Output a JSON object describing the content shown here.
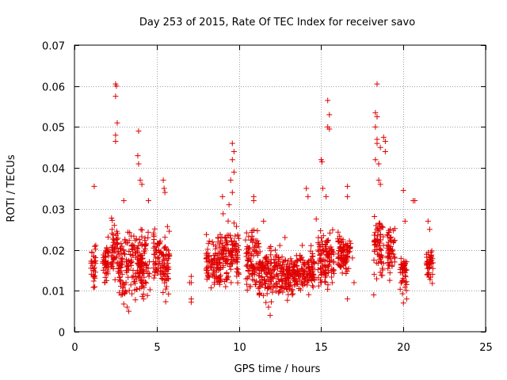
{
  "chart_data": {
    "type": "scatter",
    "title": "Day 253 of 2015, Rate Of TEC Index for receiver savo",
    "xlabel": "GPS time / hours",
    "ylabel": "ROTI / TECUs",
    "xlim": [
      0,
      25
    ],
    "ylim": [
      0,
      0.07
    ],
    "x_ticks": [
      0,
      5,
      10,
      15,
      20,
      25
    ],
    "y_ticks": [
      0,
      0.01,
      0.02,
      0.03,
      0.04,
      0.05,
      0.06,
      0.07
    ],
    "x_tick_labels": [
      "0",
      "5",
      "10",
      "15",
      "20",
      "25"
    ],
    "y_tick_labels": [
      "0",
      "0.01",
      "0.02",
      "0.03",
      "0.04",
      "0.05",
      "0.06",
      "0.07"
    ],
    "grid": true,
    "marker": "plus",
    "color": "#e00000",
    "clusters": [
      {
        "x": [
          1.0,
          1.3
        ],
        "y": [
          0.008,
          0.023
        ]
      },
      {
        "x": [
          1.7,
          2.1
        ],
        "y": [
          0.01,
          0.025
        ]
      },
      {
        "x": [
          2.2,
          2.7
        ],
        "y": [
          0.011,
          0.03
        ]
      },
      {
        "x": [
          2.7,
          3.3
        ],
        "y": [
          0.005,
          0.027
        ]
      },
      {
        "x": [
          3.3,
          4.6
        ],
        "y": [
          0.006,
          0.028
        ]
      },
      {
        "x": [
          4.8,
          5.2
        ],
        "y": [
          0.01,
          0.028
        ]
      },
      {
        "x": [
          5.2,
          5.8
        ],
        "y": [
          0.006,
          0.027
        ]
      },
      {
        "x": [
          8.0,
          9.0
        ],
        "y": [
          0.007,
          0.027
        ]
      },
      {
        "x": [
          9.0,
          10.0
        ],
        "y": [
          0.008,
          0.03
        ]
      },
      {
        "x": [
          10.4,
          11.2
        ],
        "y": [
          0.008,
          0.027
        ]
      },
      {
        "x": [
          11.2,
          12.5
        ],
        "y": [
          0.005,
          0.023
        ]
      },
      {
        "x": [
          12.5,
          13.5
        ],
        "y": [
          0.007,
          0.02
        ]
      },
      {
        "x": [
          13.5,
          14.6
        ],
        "y": [
          0.008,
          0.022
        ]
      },
      {
        "x": [
          14.8,
          15.8
        ],
        "y": [
          0.009,
          0.027
        ]
      },
      {
        "x": [
          16.0,
          16.8
        ],
        "y": [
          0.011,
          0.027
        ]
      },
      {
        "x": [
          18.2,
          18.8
        ],
        "y": [
          0.01,
          0.032
        ]
      },
      {
        "x": [
          19.0,
          19.5
        ],
        "y": [
          0.011,
          0.028
        ]
      },
      {
        "x": [
          19.8,
          20.2
        ],
        "y": [
          0.008,
          0.021
        ]
      },
      {
        "x": [
          21.4,
          21.8
        ],
        "y": [
          0.011,
          0.022
        ]
      }
    ],
    "points": [
      [
        1.2,
        0.0355
      ],
      [
        2.5,
        0.0605
      ],
      [
        2.55,
        0.06
      ],
      [
        2.5,
        0.0575
      ],
      [
        2.6,
        0.051
      ],
      [
        2.5,
        0.048
      ],
      [
        2.5,
        0.0465
      ],
      [
        3.0,
        0.032
      ],
      [
        3.9,
        0.049
      ],
      [
        3.85,
        0.043
      ],
      [
        3.9,
        0.041
      ],
      [
        4.0,
        0.037
      ],
      [
        4.1,
        0.036
      ],
      [
        4.5,
        0.032
      ],
      [
        5.4,
        0.037
      ],
      [
        5.45,
        0.035
      ],
      [
        5.5,
        0.034
      ],
      [
        4.2,
        0.008
      ],
      [
        3.2,
        0.006
      ],
      [
        3.3,
        0.005
      ],
      [
        7.1,
        0.0135
      ],
      [
        7.1,
        0.012
      ],
      [
        7.1,
        0.008
      ],
      [
        7.1,
        0.0072
      ],
      [
        9.6,
        0.046
      ],
      [
        9.7,
        0.044
      ],
      [
        9.6,
        0.042
      ],
      [
        9.7,
        0.039
      ],
      [
        9.5,
        0.037
      ],
      [
        9.6,
        0.034
      ],
      [
        9.4,
        0.031
      ],
      [
        9.0,
        0.033
      ],
      [
        10.9,
        0.033
      ],
      [
        10.9,
        0.032
      ],
      [
        11.9,
        0.004
      ],
      [
        11.8,
        0.006
      ],
      [
        14.1,
        0.035
      ],
      [
        14.2,
        0.033
      ],
      [
        15.0,
        0.042
      ],
      [
        15.05,
        0.0415
      ],
      [
        15.1,
        0.035
      ],
      [
        15.4,
        0.0565
      ],
      [
        15.5,
        0.053
      ],
      [
        15.4,
        0.05
      ],
      [
        15.5,
        0.0495
      ],
      [
        15.3,
        0.033
      ],
      [
        14.7,
        0.0275
      ],
      [
        16.6,
        0.0355
      ],
      [
        16.6,
        0.033
      ],
      [
        16.9,
        0.018
      ],
      [
        17.0,
        0.012
      ],
      [
        16.6,
        0.008
      ],
      [
        18.4,
        0.0605
      ],
      [
        18.3,
        0.0535
      ],
      [
        18.4,
        0.0525
      ],
      [
        18.3,
        0.05
      ],
      [
        18.4,
        0.047
      ],
      [
        18.4,
        0.046
      ],
      [
        18.6,
        0.045
      ],
      [
        18.3,
        0.042
      ],
      [
        18.5,
        0.041
      ],
      [
        18.8,
        0.0475
      ],
      [
        18.9,
        0.0465
      ],
      [
        18.9,
        0.044
      ],
      [
        18.5,
        0.037
      ],
      [
        18.6,
        0.036
      ],
      [
        18.2,
        0.009
      ],
      [
        20.0,
        0.0345
      ],
      [
        20.1,
        0.027
      ],
      [
        20.2,
        0.008
      ],
      [
        20.0,
        0.007
      ],
      [
        20.6,
        0.032
      ],
      [
        20.7,
        0.032
      ],
      [
        21.5,
        0.027
      ],
      [
        21.6,
        0.025
      ],
      [
        11.5,
        0.027
      ],
      [
        12.8,
        0.023
      ],
      [
        12.9,
        0.016
      ],
      [
        13.2,
        0.014
      ],
      [
        7.0,
        0.012
      ]
    ]
  }
}
